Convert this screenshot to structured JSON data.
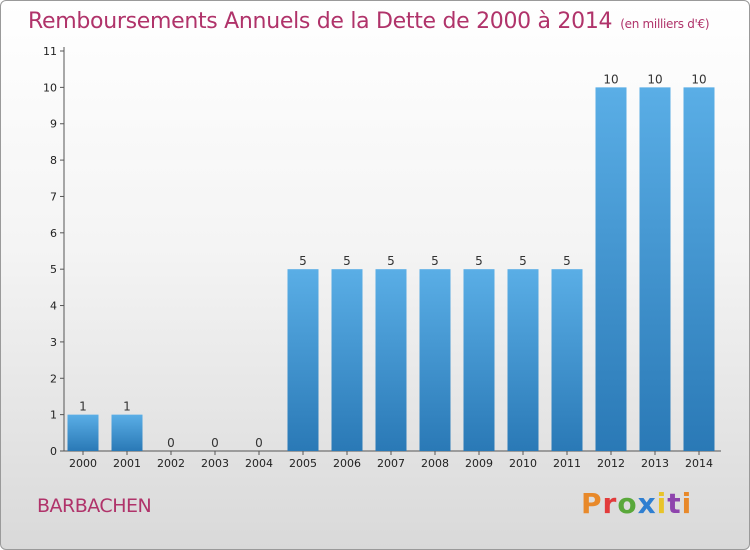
{
  "header": {
    "title": "Remboursements Annuels de la Dette de 2000 à 2014",
    "subtitle": "(en milliers d'€)"
  },
  "footer": {
    "commune": "BARBACHEN",
    "brand": "Proxiti",
    "brand_colors": [
      "#e8892a",
      "#e23b3b",
      "#5aa83a",
      "#2f7fd1",
      "#e8c42a",
      "#8e44ad",
      "#e8892a"
    ]
  },
  "colors": {
    "title": "#b0336a",
    "bar_light": "#5aaee6",
    "bar_dark": "#2a79b6",
    "grid": "#bbbbbb"
  },
  "chart_data": {
    "type": "bar",
    "categories": [
      "2000",
      "2001",
      "2002",
      "2003",
      "2004",
      "2005",
      "2006",
      "2007",
      "2008",
      "2009",
      "2010",
      "2011",
      "2012",
      "2013",
      "2014"
    ],
    "values": [
      1,
      1,
      0,
      0,
      0,
      5,
      5,
      5,
      5,
      5,
      5,
      5,
      10,
      10,
      10
    ],
    "ylim": [
      0,
      11
    ],
    "yticks": [
      0,
      1,
      2,
      3,
      4,
      5,
      6,
      7,
      8,
      9,
      10,
      11
    ],
    "grid": false
  }
}
